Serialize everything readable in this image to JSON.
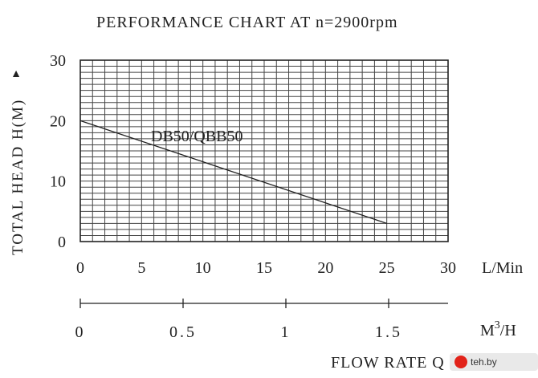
{
  "chart_data": {
    "type": "line",
    "title": "PERFORMANCE CHART AT n=2900rpm",
    "ylabel": "TOTAL  HEAD  H(M)",
    "ylabel_arrow": "▲",
    "xlabel_primary_unit": "L/Min",
    "xlabel_secondary_unit_base": "M",
    "xlabel_secondary_unit_sup": "3",
    "xlabel_secondary_unit_tail": "/H",
    "xlabel_footer": "FLOW  RATE  Q",
    "xlim": [
      0,
      30
    ],
    "ylim": [
      0,
      30
    ],
    "grid": true,
    "x_ticks": [
      "0",
      "5",
      "10",
      "15",
      "20",
      "25",
      "30"
    ],
    "y_ticks": [
      "0",
      "10",
      "20",
      "30"
    ],
    "secondary_x_ticks": [
      {
        "value": 0,
        "label": "0"
      },
      {
        "value": 0.5,
        "label": "0.5"
      },
      {
        "value": 1,
        "label": "1"
      },
      {
        "value": 1.5,
        "label": "1.5"
      }
    ],
    "series": [
      {
        "name": "DB50/QBB50",
        "x": [
          0,
          25
        ],
        "y": [
          20,
          3
        ]
      }
    ]
  },
  "watermark": {
    "text": "teh.by"
  },
  "colors": {
    "ink": "#222222",
    "grid": "#444444",
    "watermark_dot": "#e2231a"
  }
}
